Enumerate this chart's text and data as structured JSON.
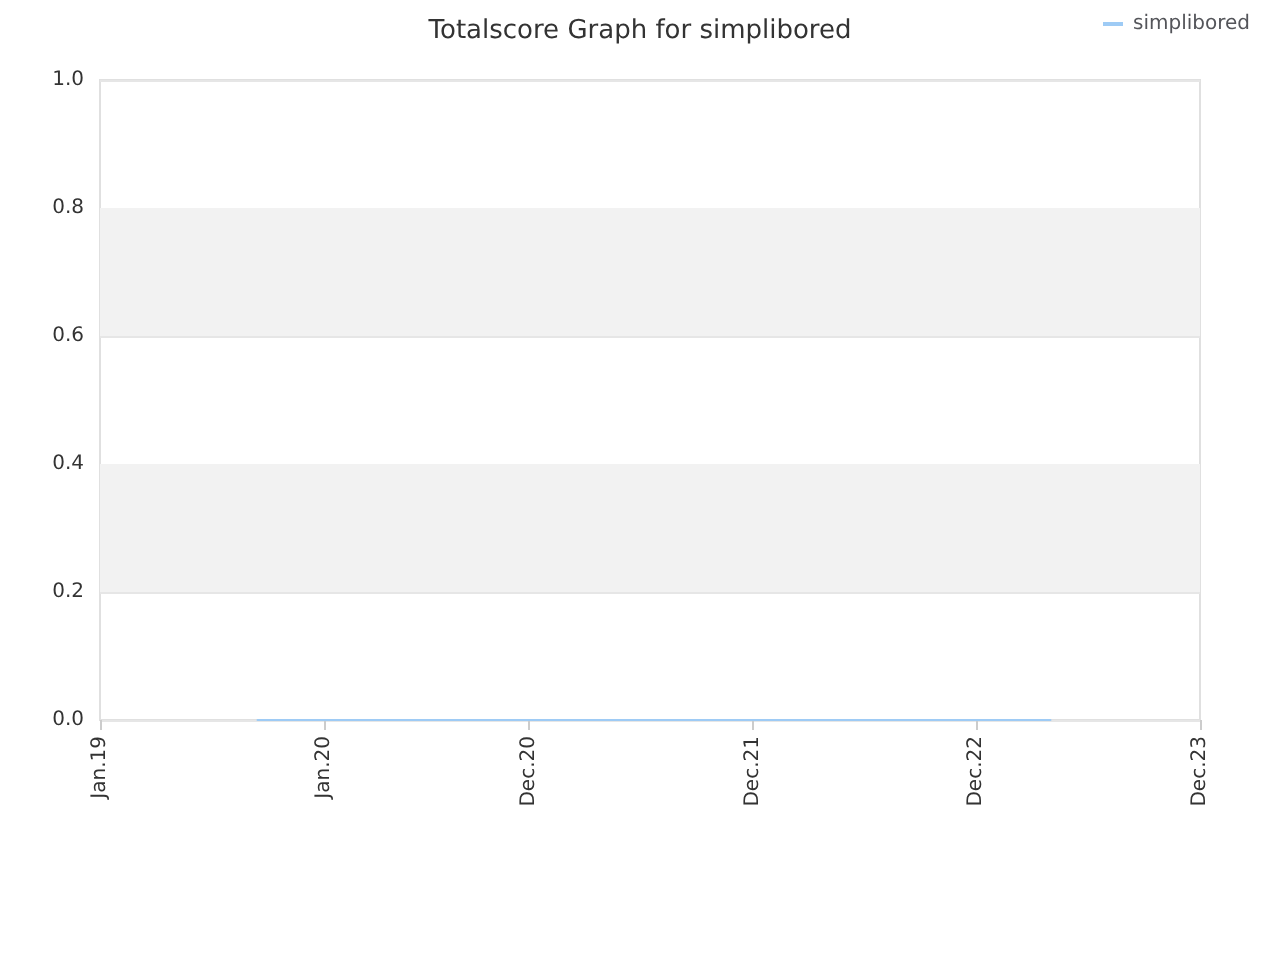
{
  "chart_data": {
    "type": "line",
    "title": "Totalscore Graph for simplibored",
    "x": [
      "2019-09-15",
      "2023-04-01"
    ],
    "series": [
      {
        "name": "simplibored",
        "color": "#9ecbf5",
        "values": [
          0,
          0
        ]
      }
    ],
    "xlim": [
      "2019-01-01",
      "2023-12-01"
    ],
    "xticks": [
      {
        "value": "2019-01-01",
        "label": "Jan.19"
      },
      {
        "value": "2020-01-01",
        "label": "Jan.20"
      },
      {
        "value": "2020-12-01",
        "label": "Dec.20"
      },
      {
        "value": "2021-12-01",
        "label": "Dec.21"
      },
      {
        "value": "2022-12-01",
        "label": "Dec.22"
      },
      {
        "value": "2023-12-01",
        "label": "Dec.23"
      }
    ],
    "ylim": [
      0,
      1
    ],
    "yticks": [
      {
        "value": 0,
        "label": "0.0"
      },
      {
        "value": 0.2,
        "label": "0.2"
      },
      {
        "value": 0.4,
        "label": "0.4"
      },
      {
        "value": 0.6,
        "label": "0.6"
      },
      {
        "value": 0.8,
        "label": "0.8"
      },
      {
        "value": 1,
        "label": "1.0"
      }
    ],
    "bands": [
      {
        "axis": "y",
        "from": 0.2,
        "to": 0.4,
        "color": "#f2f2f2"
      },
      {
        "axis": "y",
        "from": 0.6,
        "to": 0.8,
        "color": "#f2f2f2"
      }
    ],
    "grid": "y",
    "legend": "top right",
    "marker": "none",
    "line_style": "solid"
  }
}
